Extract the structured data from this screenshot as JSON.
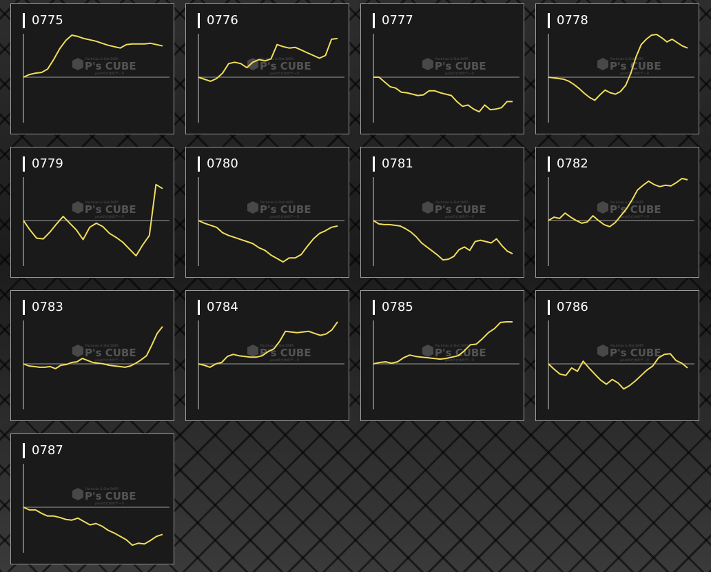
{
  "watermark": {
    "brand": "P's CUBE",
    "line1": "Pachinko & Slot DATA",
    "line2": "pslotのためのデータ"
  },
  "colors": {
    "line": "#f2dd5c",
    "axis": "#cccccc",
    "card_bg": "#1a1a1a",
    "border": "#9a9a9a"
  },
  "chart_data": [
    {
      "type": "line",
      "title": "0775",
      "y": [
        0,
        4,
        6,
        7,
        12,
        26,
        42,
        54,
        62,
        60,
        57,
        55,
        53,
        50,
        47,
        45,
        43,
        48,
        49,
        49,
        49,
        50,
        48,
        46
      ],
      "ylim": [
        -65,
        65
      ]
    },
    {
      "type": "line",
      "title": "0776",
      "y": [
        0,
        -3,
        -6,
        -2,
        6,
        20,
        22,
        20,
        14,
        22,
        26,
        24,
        27,
        48,
        45,
        43,
        44,
        40,
        36,
        32,
        28,
        32,
        56,
        57
      ],
      "ylim": [
        -65,
        65
      ]
    },
    {
      "type": "line",
      "title": "0777",
      "y": [
        0,
        0,
        -7,
        -14,
        -16,
        -22,
        -23,
        -25,
        -27,
        -26,
        -20,
        -20,
        -23,
        -25,
        -27,
        -36,
        -43,
        -41,
        -47,
        -51,
        -41,
        -48,
        -47,
        -45,
        -36,
        -36
      ],
      "ylim": [
        -65,
        65
      ]
    },
    {
      "type": "line",
      "title": "0778",
      "y": [
        0,
        -1,
        -2,
        -3,
        -6,
        -11,
        -17,
        -24,
        -30,
        -34,
        -26,
        -19,
        -23,
        -25,
        -21,
        -12,
        6,
        30,
        48,
        56,
        62,
        63,
        58,
        52,
        56,
        51,
        46,
        43
      ],
      "ylim": [
        -65,
        65
      ]
    },
    {
      "type": "line",
      "title": "0779",
      "y": [
        0,
        -14,
        -26,
        -27,
        -17,
        -5,
        6,
        -4,
        -14,
        -28,
        -10,
        -4,
        -9,
        -19,
        -25,
        -32,
        -42,
        -52,
        -36,
        -22,
        53,
        47
      ],
      "ylim": [
        -65,
        65
      ]
    },
    {
      "type": "line",
      "title": "0780",
      "y": [
        0,
        -4,
        -7,
        -10,
        -18,
        -22,
        -25,
        -28,
        -31,
        -34,
        -40,
        -44,
        -51,
        -56,
        -61,
        -55,
        -55,
        -50,
        -38,
        -27,
        -19,
        -15,
        -10,
        -8
      ],
      "ylim": [
        -65,
        65
      ]
    },
    {
      "type": "line",
      "title": "0781",
      "y": [
        0,
        -5,
        -6,
        -6,
        -7,
        -8,
        -12,
        -17,
        -24,
        -33,
        -39,
        -45,
        -51,
        -58,
        -57,
        -53,
        -43,
        -39,
        -44,
        -31,
        -29,
        -31,
        -33,
        -27,
        -37,
        -45,
        -49
      ],
      "ylim": [
        -65,
        65
      ]
    },
    {
      "type": "line",
      "title": "0782",
      "y": [
        0,
        5,
        3,
        11,
        5,
        0,
        -4,
        -2,
        7,
        0,
        -6,
        -9,
        -3,
        7,
        17,
        30,
        45,
        52,
        58,
        53,
        50,
        52,
        51,
        56,
        62,
        60
      ],
      "ylim": [
        -65,
        65
      ]
    },
    {
      "type": "line",
      "title": "0783",
      "y": [
        0,
        -3,
        -4,
        -5,
        -5,
        -4,
        -7,
        -2,
        -1,
        2,
        3,
        8,
        5,
        2,
        1,
        0,
        -2,
        -3,
        -4,
        -5,
        -3,
        1,
        6,
        12,
        28,
        45,
        55
      ],
      "ylim": [
        -65,
        65
      ]
    },
    {
      "type": "line",
      "title": "0784",
      "y": [
        0,
        -2,
        -5,
        0,
        2,
        11,
        14,
        12,
        11,
        10,
        10,
        12,
        18,
        22,
        33,
        48,
        47,
        46,
        47,
        48,
        45,
        42,
        44,
        50,
        62
      ],
      "ylim": [
        -65,
        65
      ]
    },
    {
      "type": "line",
      "title": "0785",
      "y": [
        0,
        2,
        3,
        1,
        3,
        9,
        13,
        11,
        10,
        9,
        8,
        7,
        8,
        10,
        12,
        19,
        28,
        29,
        37,
        46,
        52,
        61,
        62,
        62
      ],
      "ylim": [
        -65,
        65
      ]
    },
    {
      "type": "line",
      "title": "0786",
      "y": [
        0,
        -8,
        -15,
        -17,
        -6,
        -11,
        4,
        -6,
        -15,
        -24,
        -30,
        -23,
        -28,
        -37,
        -32,
        -25,
        -17,
        -9,
        -3,
        9,
        14,
        15,
        5,
        1,
        -6
      ],
      "ylim": [
        -65,
        65
      ]
    },
    {
      "type": "line",
      "title": "0787",
      "y": [
        0,
        -4,
        -4,
        -9,
        -13,
        -13,
        -15,
        -18,
        -19,
        -16,
        -21,
        -26,
        -24,
        -28,
        -34,
        -38,
        -43,
        -48,
        -56,
        -53,
        -54,
        -49,
        -43,
        -40
      ],
      "ylim": [
        -65,
        65
      ]
    }
  ]
}
